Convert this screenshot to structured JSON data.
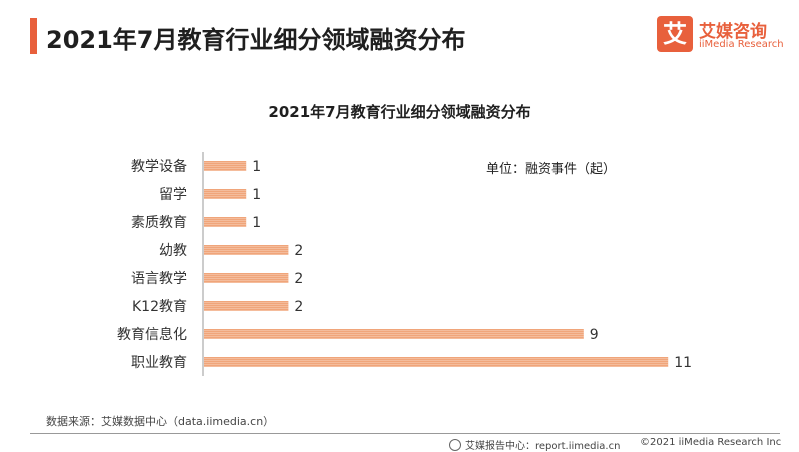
{
  "header": {
    "title": "2021年7月教育行业细分领域融资分布"
  },
  "logo": {
    "mark": "艾",
    "name_cn": "艾媒咨询",
    "name_en": "iiMedia Research"
  },
  "colors": {
    "accent": "#e8603c",
    "bar": "#f0a57a"
  },
  "chart_data": {
    "type": "bar",
    "orientation": "horizontal",
    "title": "2021年7月教育行业细分领域融资分布",
    "unit_label": "单位：融资事件（起）",
    "categories": [
      "教学设备",
      "留学",
      "素质教育",
      "幼教",
      "语言教学",
      "K12教育",
      "教育信息化",
      "职业教育"
    ],
    "values": [
      1,
      1,
      1,
      2,
      2,
      2,
      9,
      11
    ],
    "xlim": [
      0,
      11
    ],
    "grid": false,
    "legend": "none"
  },
  "footer": {
    "source": "数据来源：艾媒数据中心（data.iimedia.cn）",
    "report_center": "艾媒报告中心：report.iimedia.cn",
    "copyright": "©2021  iiMedia Research  Inc"
  }
}
